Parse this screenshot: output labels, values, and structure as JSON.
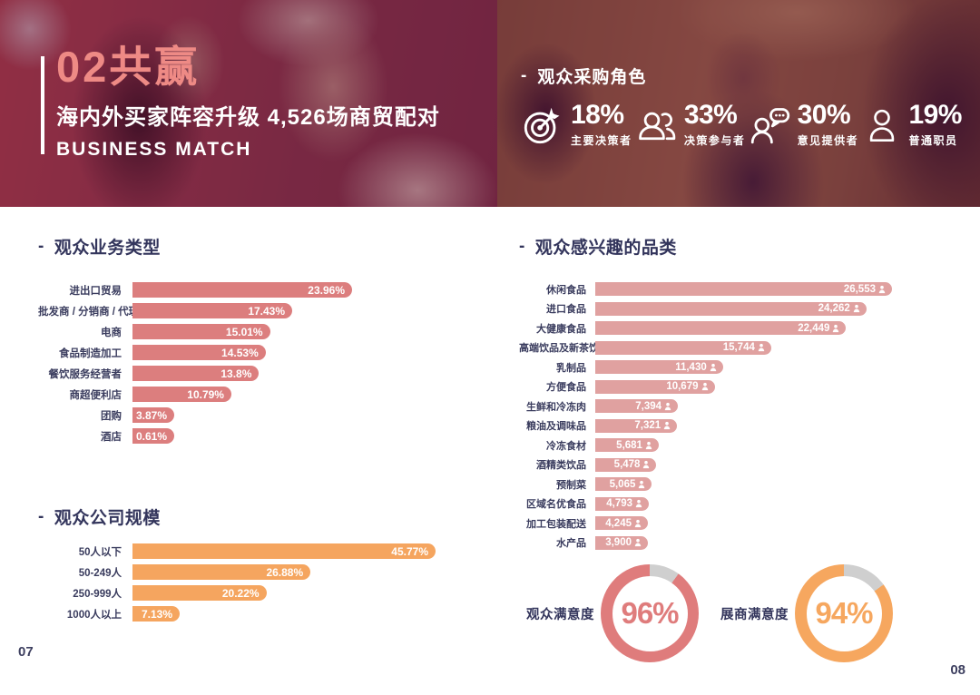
{
  "dash": "-",
  "page": {
    "left_page_number": "07",
    "right_page_number": "08"
  },
  "colors": {
    "title_salmon": "#EE8A85",
    "bar_pink": "#DC7E7E",
    "bar_light_pink": "#E0A1A0",
    "bar_orange": "#F5A55F",
    "navy_text": "#33355C",
    "donut_gray": "#CFCFCF",
    "donut_pink": "#DF7C7C",
    "donut_orange": "#F6A75F"
  },
  "banner": {
    "section_title": "02共赢",
    "subtitle": "海内外买家阵容升级 4,526场商贸配对",
    "subtitle_en": "BUSINESS MATCH",
    "roles": {
      "heading": "观众采购角色",
      "items": [
        {
          "icon": "target-icon",
          "value": "18%",
          "label": "主要决策者"
        },
        {
          "icon": "group-icon",
          "value": "33%",
          "label": "决策参与者"
        },
        {
          "icon": "person-chat-icon",
          "value": "30%",
          "label": "意见提供者"
        },
        {
          "icon": "person-icon",
          "value": "19%",
          "label": "普通职员"
        }
      ]
    }
  },
  "chart_data": [
    {
      "id": "business_type",
      "type": "bar",
      "orientation": "horizontal",
      "title": "观众业务类型",
      "categories": [
        "进出口贸易",
        "批发商 / 分销商 / 代理商",
        "电商",
        "食品制造加工",
        "餐饮服务经营者",
        "商超便利店",
        "团购",
        "酒店"
      ],
      "values": [
        23.96,
        17.43,
        15.01,
        14.53,
        13.8,
        10.79,
        3.87,
        0.61
      ],
      "values_display": [
        "23.96%",
        "17.43%",
        "15.01%",
        "14.53%",
        "13.8%",
        "10.79%",
        "3.87%",
        "0.61%"
      ],
      "value_suffix": "%",
      "xlim": [
        0,
        24
      ],
      "bar_color": "#DC7E7E",
      "grid": false,
      "legend": "none"
    },
    {
      "id": "company_size",
      "type": "bar",
      "orientation": "horizontal",
      "title": "观众公司规模",
      "categories": [
        "50人以下",
        "50-249人",
        "250-999人",
        "1000人以上"
      ],
      "values": [
        45.77,
        26.88,
        20.22,
        7.13
      ],
      "values_display": [
        "45.77%",
        "26.88%",
        "20.22%",
        "7.13%"
      ],
      "value_suffix": "%",
      "xlim": [
        0,
        46
      ],
      "bar_color": "#F5A55F",
      "grid": false,
      "legend": "none"
    },
    {
      "id": "interest_categories",
      "type": "bar",
      "orientation": "horizontal",
      "title": "观众感兴趣的品类",
      "categories": [
        "休闲食品",
        "进口食品",
        "大健康食品",
        "高端饮品及新茶饮",
        "乳制品",
        "方便食品",
        "生鲜和冷冻肉",
        "粮油及调味品",
        "冷冻食材",
        "酒精类饮品",
        "预制菜",
        "区域名优食品",
        "加工包装配送",
        "水产品"
      ],
      "values": [
        26553,
        24262,
        22449,
        15744,
        11430,
        10679,
        7394,
        7321,
        5681,
        5478,
        5065,
        4793,
        4245,
        3900
      ],
      "values_display": [
        "26,553",
        "24,262",
        "22,449",
        "15,744",
        "11,430",
        "10,679",
        "7,394",
        "7,321",
        "5,681",
        "5,478",
        "5,065",
        "4,793",
        "4,245",
        "3,900"
      ],
      "value_icon": "person",
      "xlim": [
        0,
        27000
      ],
      "bar_color": "#E0A1A0",
      "grid": false,
      "legend": "none"
    },
    {
      "id": "satisfaction",
      "type": "donut",
      "items": [
        {
          "label": "观众满意度",
          "value": 96,
          "value_display": "96%",
          "color": "#DF7C7C"
        },
        {
          "label": "展商满意度",
          "value": 94,
          "value_display": "94%",
          "color": "#F6A75F"
        }
      ],
      "track_color": "#CFCFCF"
    }
  ]
}
